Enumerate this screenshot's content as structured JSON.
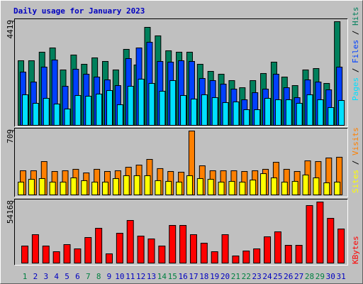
{
  "chart_data": [
    {
      "type": "bar",
      "title": "Daily usage for January 2023",
      "legend_separator": "/",
      "ylim": [
        0,
        4419
      ],
      "yticks": [
        4419
      ],
      "series": [
        {
          "name": "Hits",
          "color": "#00805c",
          "values": [
            2754,
            2754,
            3118,
            3299,
            2361,
            2997,
            2603,
            2876,
            2724,
            2361,
            3239,
            2573,
            4177,
            3814,
            3178,
            3118,
            3118,
            2603,
            2300,
            2179,
            1907,
            1604,
            1907,
            2210,
            2694,
            2058,
            1695,
            2361,
            2421,
            1786,
            4419
          ]
        },
        {
          "name": "Files",
          "color": "#0040ff",
          "values": [
            2270,
            1846,
            2482,
            2785,
            1665,
            2391,
            2179,
            2058,
            1937,
            1695,
            2845,
            3299,
            3541,
            2724,
            2694,
            2754,
            2724,
            1998,
            1907,
            1756,
            1544,
            1090,
            1392,
            1544,
            2179,
            1604,
            1181,
            1937,
            1846,
            1514,
            2482
          ]
        },
        {
          "name": "Pages",
          "color": "#00e0ff",
          "values": [
            1302,
            938,
            1150,
            908,
            696,
            1271,
            1241,
            1332,
            1483,
            878,
            1665,
            1968,
            1786,
            1453,
            1907,
            1271,
            1120,
            1302,
            1181,
            969,
            999,
            666,
            666,
            1150,
            1090,
            1090,
            938,
            1302,
            1090,
            757,
            1059
          ]
        }
      ]
    },
    {
      "type": "bar",
      "legend_separator": "/",
      "ylim": [
        0,
        709
      ],
      "yticks": [
        709
      ],
      "series": [
        {
          "name": "Visits",
          "color": "#ff8000",
          "values": [
            268,
            268,
            370,
            260,
            268,
            284,
            244,
            284,
            260,
            268,
            307,
            331,
            394,
            292,
            260,
            252,
            709,
            323,
            268,
            268,
            268,
            260,
            268,
            284,
            362,
            284,
            260,
            378,
            370,
            410,
            418
          ]
        },
        {
          "name": "Sites",
          "color": "#ffff00",
          "values": [
            142,
            173,
            181,
            142,
            142,
            189,
            158,
            142,
            142,
            181,
            213,
            213,
            213,
            158,
            150,
            142,
            213,
            181,
            173,
            142,
            150,
            142,
            165,
            236,
            189,
            142,
            150,
            221,
            189,
            134,
            142
          ]
        }
      ]
    },
    {
      "type": "bar",
      "ylim": [
        0,
        54168
      ],
      "yticks": [
        54168
      ],
      "categories": [
        "1",
        "2",
        "3",
        "4",
        "5",
        "6",
        "7",
        "8",
        "9",
        "10",
        "11",
        "12",
        "13",
        "14",
        "15",
        "16",
        "17",
        "18",
        "19",
        "20",
        "21",
        "22",
        "23",
        "24",
        "25",
        "26",
        "27",
        "28",
        "29",
        "30",
        "31"
      ],
      "category_colors": [
        "#008040",
        "#0000c0",
        "#0000c0",
        "#0000c0",
        "#0000c0",
        "#0000c0",
        "#008040",
        "#008040",
        "#0000c0",
        "#0000c0",
        "#0000c0",
        "#0000c0",
        "#0000c0",
        "#008040",
        "#008040",
        "#0000c0",
        "#0000c0",
        "#0000c0",
        "#0000c0",
        "#0000c0",
        "#008040",
        "#008040",
        "#0000c0",
        "#0000c0",
        "#0000c0",
        "#0000c0",
        "#0000c0",
        "#008040",
        "#008040",
        "#0000c0",
        "#0000c0"
      ],
      "series": [
        {
          "name": "KBytes",
          "color": "#ff0000",
          "values": [
            15120,
            25200,
            15120,
            10080,
            16380,
            12600,
            22680,
            30870,
            8190,
            26460,
            37800,
            23940,
            21420,
            15120,
            33390,
            33390,
            25200,
            17640,
            10080,
            25200,
            6300,
            10710,
            12600,
            23310,
            27720,
            15750,
            15750,
            51030,
            54168,
            39690,
            30240
          ]
        }
      ]
    }
  ]
}
